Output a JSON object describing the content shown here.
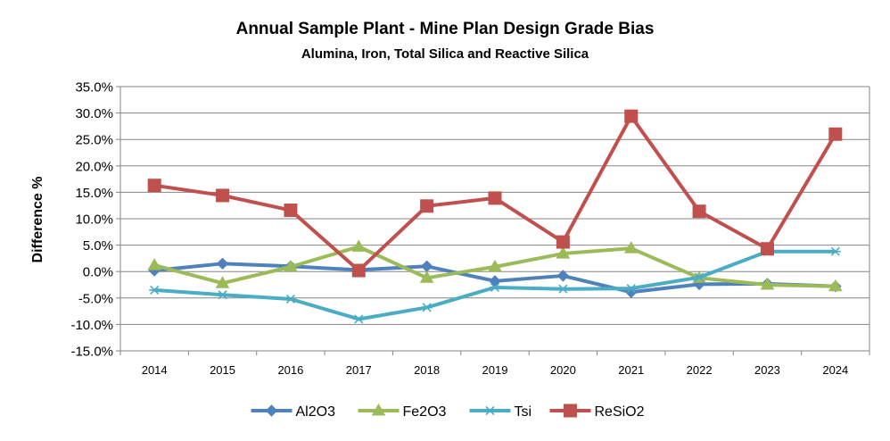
{
  "chart_data": {
    "type": "line",
    "title": "Annual Sample Plant - Mine Plan Design Grade Bias",
    "subtitle": "Alumina, Iron, Total Silica and Reactive Silica",
    "xlabel": "",
    "ylabel": "Difference %",
    "ylim": [
      -15,
      35
    ],
    "ytick_step": 5,
    "ytick_labels": [
      "35.0%",
      "30.0%",
      "25.0%",
      "20.0%",
      "15.0%",
      "10.0%",
      "5.0%",
      "0.0%",
      "-5.0%",
      "-10.0%",
      "-15.0%"
    ],
    "categories": [
      "2014",
      "2015",
      "2016",
      "2017",
      "2018",
      "2019",
      "2020",
      "2021",
      "2022",
      "2023",
      "2024"
    ],
    "grid": true,
    "legend": "bottom",
    "series": [
      {
        "name": "Al2O3",
        "color": "#4f81bd",
        "marker": "diamond",
        "values": [
          0.2,
          1.5,
          1.0,
          0.3,
          1.0,
          -1.8,
          -0.8,
          -3.9,
          -2.4,
          -2.3,
          -2.8
        ]
      },
      {
        "name": "Fe2O3",
        "color": "#9bbb59",
        "marker": "triangle",
        "values": [
          1.2,
          -2.2,
          0.9,
          4.7,
          -1.2,
          0.9,
          3.4,
          4.4,
          -1.2,
          -2.5,
          -2.8
        ]
      },
      {
        "name": "Tsi",
        "color": "#4bacc6",
        "marker": "asterisk",
        "values": [
          -3.5,
          -4.4,
          -5.2,
          -9.0,
          -6.8,
          -3.0,
          -3.3,
          -3.2,
          -1.1,
          3.8,
          3.8
        ]
      },
      {
        "name": "ReSiO2",
        "color": "#c0504d",
        "marker": "square",
        "values": [
          16.3,
          14.4,
          11.6,
          0.2,
          12.4,
          13.9,
          5.6,
          29.4,
          11.4,
          4.3,
          26.0
        ]
      }
    ]
  }
}
